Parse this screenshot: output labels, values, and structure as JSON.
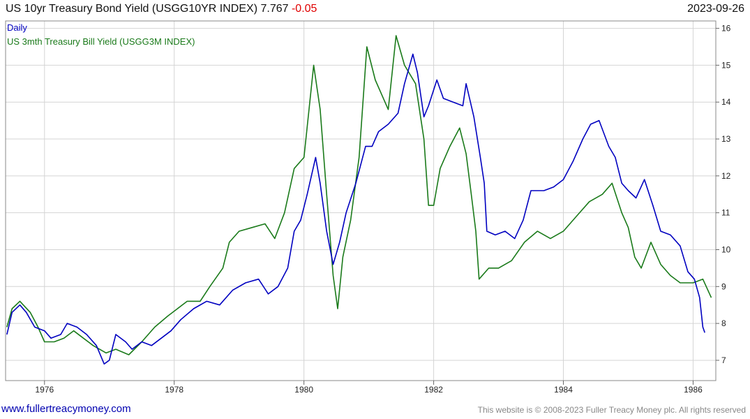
{
  "header": {
    "title": "US 10yr Treasury Bond Yield (USGG10YR INDEX) 7.767",
    "change": "-0.05",
    "date": "2023-09-26"
  },
  "footer": {
    "left": "www.fullertreacymoney.com",
    "right": "This website is © 2008-2023 Fuller Treacy Money plc. All rights reserved"
  },
  "colors": {
    "bond": "#0000c0",
    "bill": "#1a7a1a",
    "grid": "#d4d4d4"
  },
  "chart_data": {
    "type": "line",
    "frequency": "Daily",
    "x_unit": "year (decimal)",
    "xlim": [
      1975.4,
      1986.35
    ],
    "ylim": [
      6.45,
      16.2
    ],
    "x_ticks": [
      {
        "value": 1976,
        "label": "1976"
      },
      {
        "value": 1978,
        "label": "1978"
      },
      {
        "value": 1980,
        "label": "1980"
      },
      {
        "value": 1982,
        "label": "1982"
      },
      {
        "value": 1984,
        "label": "1984"
      },
      {
        "value": 1986,
        "label": "1986"
      }
    ],
    "y_ticks": [
      {
        "value": 7,
        "label": "7"
      },
      {
        "value": 8,
        "label": "8"
      },
      {
        "value": 9,
        "label": "9"
      },
      {
        "value": 10,
        "label": "10"
      },
      {
        "value": 11,
        "label": "11"
      },
      {
        "value": 12,
        "label": "12"
      },
      {
        "value": 13,
        "label": "13"
      },
      {
        "value": 14,
        "label": "14"
      },
      {
        "value": 15,
        "label": "15"
      },
      {
        "value": 16,
        "label": "16"
      }
    ],
    "grid": true,
    "y_axis_side": "right",
    "series": [
      {
        "name": "US 3mth Treasury Bill Yield (USGG3M INDEX)",
        "color": "#1a7a1a",
        "points": [
          [
            1975.42,
            7.9
          ],
          [
            1975.5,
            8.4
          ],
          [
            1975.62,
            8.6
          ],
          [
            1975.78,
            8.3
          ],
          [
            1975.9,
            7.9
          ],
          [
            1976.0,
            7.5
          ],
          [
            1976.15,
            7.5
          ],
          [
            1976.3,
            7.6
          ],
          [
            1976.45,
            7.8
          ],
          [
            1976.6,
            7.6
          ],
          [
            1976.75,
            7.4
          ],
          [
            1976.95,
            7.2
          ],
          [
            1977.1,
            7.3
          ],
          [
            1977.3,
            7.15
          ],
          [
            1977.5,
            7.5
          ],
          [
            1977.7,
            7.9
          ],
          [
            1977.9,
            8.2
          ],
          [
            1978.05,
            8.4
          ],
          [
            1978.2,
            8.6
          ],
          [
            1978.4,
            8.6
          ],
          [
            1978.55,
            9.0
          ],
          [
            1978.75,
            9.5
          ],
          [
            1978.85,
            10.2
          ],
          [
            1979.0,
            10.5
          ],
          [
            1979.2,
            10.6
          ],
          [
            1979.4,
            10.7
          ],
          [
            1979.55,
            10.3
          ],
          [
            1979.7,
            11.0
          ],
          [
            1979.85,
            12.2
          ],
          [
            1980.0,
            12.5
          ],
          [
            1980.15,
            15.0
          ],
          [
            1980.25,
            13.8
          ],
          [
            1980.35,
            11.5
          ],
          [
            1980.45,
            9.3
          ],
          [
            1980.52,
            8.4
          ],
          [
            1980.6,
            9.8
          ],
          [
            1980.72,
            10.8
          ],
          [
            1980.85,
            12.5
          ],
          [
            1980.97,
            15.5
          ],
          [
            1981.1,
            14.6
          ],
          [
            1981.3,
            13.8
          ],
          [
            1981.42,
            15.8
          ],
          [
            1981.55,
            15.0
          ],
          [
            1981.72,
            14.5
          ],
          [
            1981.85,
            13.0
          ],
          [
            1981.92,
            11.2
          ],
          [
            1982.0,
            11.2
          ],
          [
            1982.1,
            12.2
          ],
          [
            1982.25,
            12.8
          ],
          [
            1982.4,
            13.3
          ],
          [
            1982.5,
            12.6
          ],
          [
            1982.58,
            11.5
          ],
          [
            1982.65,
            10.5
          ],
          [
            1982.7,
            9.2
          ],
          [
            1982.85,
            9.5
          ],
          [
            1983.0,
            9.5
          ],
          [
            1983.2,
            9.7
          ],
          [
            1983.4,
            10.2
          ],
          [
            1983.6,
            10.5
          ],
          [
            1983.8,
            10.3
          ],
          [
            1984.0,
            10.5
          ],
          [
            1984.2,
            10.9
          ],
          [
            1984.4,
            11.3
          ],
          [
            1984.6,
            11.5
          ],
          [
            1984.75,
            11.8
          ],
          [
            1984.9,
            11.0
          ],
          [
            1985.0,
            10.6
          ],
          [
            1985.1,
            9.8
          ],
          [
            1985.2,
            9.5
          ],
          [
            1985.35,
            10.2
          ],
          [
            1985.5,
            9.6
          ],
          [
            1985.65,
            9.3
          ],
          [
            1985.8,
            9.1
          ],
          [
            1986.0,
            9.1
          ],
          [
            1986.15,
            9.2
          ],
          [
            1986.28,
            8.7
          ]
        ]
      },
      {
        "name": "US 10yr Treasury Bond Yield (USGG10YR INDEX)",
        "color": "#0000c0",
        "points": [
          [
            1975.42,
            7.7
          ],
          [
            1975.5,
            8.3
          ],
          [
            1975.62,
            8.5
          ],
          [
            1975.72,
            8.3
          ],
          [
            1975.85,
            7.9
          ],
          [
            1976.0,
            7.8
          ],
          [
            1976.1,
            7.6
          ],
          [
            1976.25,
            7.7
          ],
          [
            1976.35,
            8.0
          ],
          [
            1976.5,
            7.9
          ],
          [
            1976.65,
            7.7
          ],
          [
            1976.8,
            7.4
          ],
          [
            1976.92,
            6.9
          ],
          [
            1977.0,
            7.0
          ],
          [
            1977.1,
            7.7
          ],
          [
            1977.25,
            7.5
          ],
          [
            1977.35,
            7.3
          ],
          [
            1977.5,
            7.5
          ],
          [
            1977.65,
            7.4
          ],
          [
            1977.8,
            7.6
          ],
          [
            1977.95,
            7.8
          ],
          [
            1978.1,
            8.1
          ],
          [
            1978.3,
            8.4
          ],
          [
            1978.5,
            8.6
          ],
          [
            1978.7,
            8.5
          ],
          [
            1978.9,
            8.9
          ],
          [
            1979.1,
            9.1
          ],
          [
            1979.3,
            9.2
          ],
          [
            1979.45,
            8.8
          ],
          [
            1979.6,
            9.0
          ],
          [
            1979.75,
            9.5
          ],
          [
            1979.85,
            10.5
          ],
          [
            1979.95,
            10.8
          ],
          [
            1980.05,
            11.5
          ],
          [
            1980.18,
            12.5
          ],
          [
            1980.25,
            11.8
          ],
          [
            1980.35,
            10.5
          ],
          [
            1980.45,
            9.6
          ],
          [
            1980.55,
            10.2
          ],
          [
            1980.65,
            11.0
          ],
          [
            1980.8,
            11.8
          ],
          [
            1980.95,
            12.8
          ],
          [
            1981.05,
            12.8
          ],
          [
            1981.15,
            13.2
          ],
          [
            1981.3,
            13.4
          ],
          [
            1981.45,
            13.7
          ],
          [
            1981.55,
            14.5
          ],
          [
            1981.68,
            15.3
          ],
          [
            1981.75,
            14.8
          ],
          [
            1981.85,
            13.6
          ],
          [
            1981.92,
            13.9
          ],
          [
            1982.05,
            14.6
          ],
          [
            1982.15,
            14.1
          ],
          [
            1982.3,
            14.0
          ],
          [
            1982.45,
            13.9
          ],
          [
            1982.5,
            14.5
          ],
          [
            1982.62,
            13.6
          ],
          [
            1982.72,
            12.5
          ],
          [
            1982.78,
            11.8
          ],
          [
            1982.82,
            10.5
          ],
          [
            1982.95,
            10.4
          ],
          [
            1983.1,
            10.5
          ],
          [
            1983.25,
            10.3
          ],
          [
            1983.38,
            10.8
          ],
          [
            1983.5,
            11.6
          ],
          [
            1983.7,
            11.6
          ],
          [
            1983.85,
            11.7
          ],
          [
            1984.0,
            11.9
          ],
          [
            1984.15,
            12.4
          ],
          [
            1984.3,
            13.0
          ],
          [
            1984.42,
            13.4
          ],
          [
            1984.55,
            13.5
          ],
          [
            1984.7,
            12.8
          ],
          [
            1984.8,
            12.5
          ],
          [
            1984.9,
            11.8
          ],
          [
            1985.0,
            11.6
          ],
          [
            1985.12,
            11.4
          ],
          [
            1985.25,
            11.9
          ],
          [
            1985.38,
            11.2
          ],
          [
            1985.5,
            10.5
          ],
          [
            1985.65,
            10.4
          ],
          [
            1985.8,
            10.1
          ],
          [
            1985.92,
            9.4
          ],
          [
            1986.02,
            9.2
          ],
          [
            1986.1,
            8.7
          ],
          [
            1986.15,
            7.9
          ],
          [
            1986.18,
            7.75
          ]
        ]
      }
    ]
  }
}
